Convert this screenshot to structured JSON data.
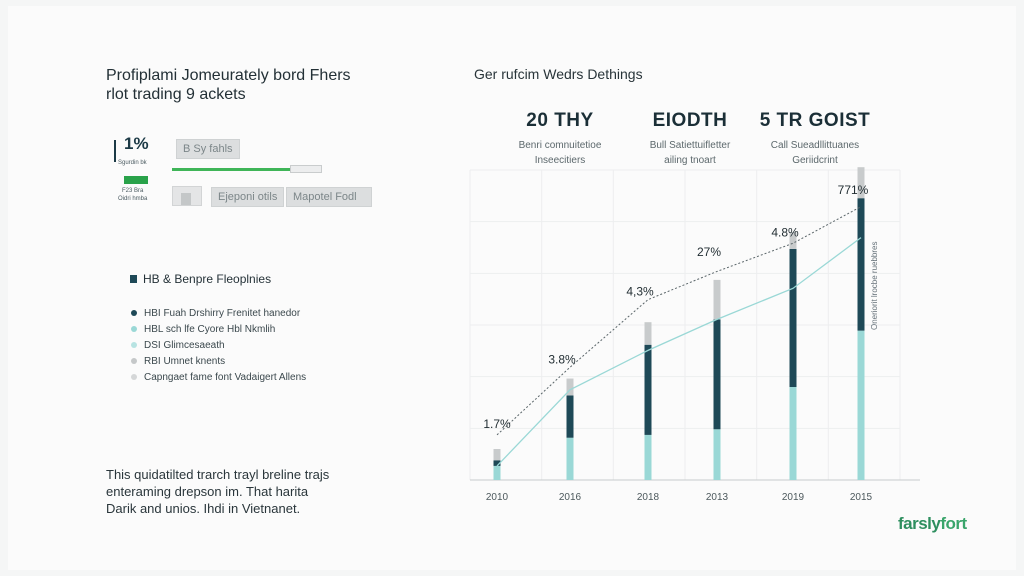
{
  "header": {
    "title_line1": "Profiplami Jomeurately bord Fhers",
    "title_line2": "rlot trading 9 ackets"
  },
  "panel": {
    "percent": "1%",
    "sub_label": "Sgurdin bk",
    "badge_line1": "F23 Bra",
    "badge_line2": "Oidri hmba"
  },
  "controls": {
    "pill_top": "B Sy fahls",
    "pill_left": "Ejeponi otils",
    "pill_right": "Mapotel Fodl"
  },
  "legend": {
    "heading": "HB & Benpre Fleoplnies",
    "heading_color": "#1e4957",
    "items": [
      {
        "label": "HBI Fuah Drshirry Frenitet hanedor",
        "color": "#1e4957"
      },
      {
        "label": "HBL sch lfe Cyore Hbl Nkmlih",
        "color": "#9ad8d6"
      },
      {
        "label": "DSI Glimcesaeath",
        "color": "#b7e3e2"
      },
      {
        "label": "RBI Umnet knents",
        "color": "#c5c8c9"
      },
      {
        "label": "Capngaet fame font Vadaigert Allens",
        "color": "#d5d7d8"
      }
    ]
  },
  "footnote": {
    "line1": "This quidatilted trarch trayl breline trajs",
    "line2": "enteraming drepson im. That harita",
    "line3": "Darik and unios. Ihdi in Vietnanet."
  },
  "chart_header": {
    "title": "Ger rufcim Wedrs Dethings",
    "stats": [
      {
        "value": "20 THY",
        "line1": "Benri comnuitetioe",
        "line2": "Inseecitiers"
      },
      {
        "value": "EIODTH",
        "line1": "Bull Satiettuifletter",
        "line2": "ailing tnoart"
      },
      {
        "value": "5 TR GOIST",
        "line1": "Call Sueadllittuanes",
        "line2": "Geriidcrint"
      }
    ]
  },
  "chart_data": {
    "type": "bar",
    "categories": [
      "2010",
      "2016",
      "2018",
      "2013",
      "2019",
      "2015"
    ],
    "series": [
      {
        "values": [
          0.5,
          1.5,
          1.6,
          1.8,
          3.3,
          5.3
        ],
        "color": "#9ad8d6"
      },
      {
        "values": [
          0.2,
          1.5,
          3.2,
          3.9,
          4.9,
          4.7
        ],
        "color": "#1e4957"
      },
      {
        "values": [
          0.4,
          0.6,
          0.8,
          1.4,
          0.6,
          1.1
        ],
        "color": "#c8cbcc"
      }
    ],
    "trend_line": {
      "values": [
        0.5,
        3.2,
        4.6,
        5.7,
        6.8,
        8.6
      ],
      "color": "#9ad8d6"
    },
    "dashed_line": {
      "values": [
        1.6,
        4.0,
        6.4,
        7.4,
        8.4,
        9.7
      ],
      "color": "#5a6569"
    },
    "annotations": [
      {
        "text": "1.7%",
        "x": "2010",
        "y": 1.7
      },
      {
        "text": "3.8%",
        "x": "2016",
        "y": 4.0
      },
      {
        "text": "4,3%",
        "x": "2018",
        "y": 6.4
      },
      {
        "text": "27%",
        "x": "2013",
        "y": 7.8
      },
      {
        "text": "4.8%",
        "x": "2019",
        "y": 8.5
      },
      {
        "text": "771%",
        "x": "2015",
        "y": 10.0
      }
    ],
    "side_label": "Oneriorit lrocbe ruebbres",
    "ylim": [
      0,
      11
    ],
    "grid": true
  },
  "brand": {
    "part1": "farsly",
    "part2": "fort"
  }
}
